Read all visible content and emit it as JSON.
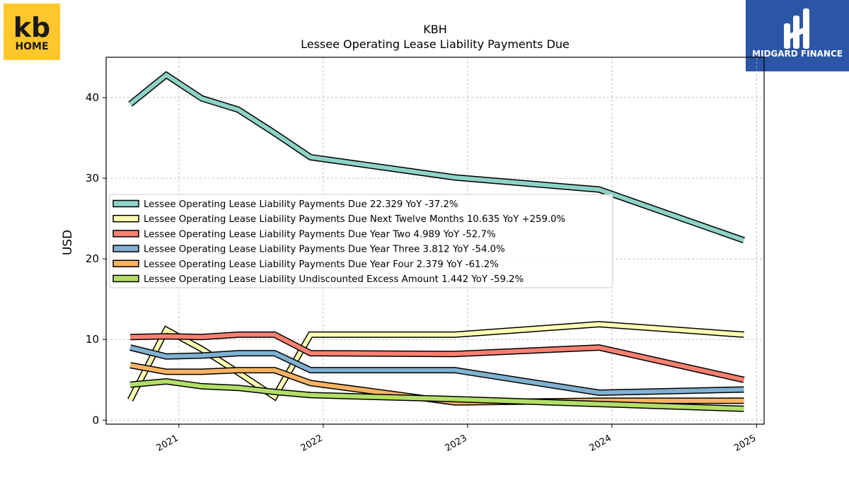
{
  "header": {
    "ticker": "KBH",
    "title": "Lessee Operating Lease Liability Payments Due"
  },
  "logos": {
    "left": {
      "line1": "kb",
      "line2": "HOME",
      "bg": "#FFC72C",
      "fg": "#1A1A1A"
    },
    "right": {
      "name": "MIDGARD FINANCE",
      "bg": "#2B56A6",
      "fg": "#FFFFFF"
    }
  },
  "chart_data": {
    "type": "line",
    "ylabel": "USD",
    "ylim": [
      -0.5,
      45
    ],
    "xlim": [
      "2020-07-01",
      "2025-01-20"
    ],
    "x_ticks": [
      "2021",
      "2022",
      "2023",
      "2024",
      "2025"
    ],
    "y_ticks": [
      0,
      10,
      20,
      30,
      40
    ],
    "grid": true,
    "legend_position": "center-left",
    "series": [
      {
        "name": "Lessee Operating Lease Liability Payments Due",
        "legend": "Lessee Operating Lease Liability Payments Due  22.329 YoY -37.2%",
        "color": "#8DD3C7",
        "points": [
          [
            "2020-08-31",
            39.2
          ],
          [
            "2020-11-30",
            42.8
          ],
          [
            "2021-02-28",
            39.9
          ],
          [
            "2021-05-31",
            38.5
          ],
          [
            "2021-08-31",
            35.6
          ],
          [
            "2021-11-30",
            32.6
          ],
          [
            "2022-11-30",
            30.1
          ],
          [
            "2023-11-30",
            28.6
          ],
          [
            "2024-11-30",
            22.3
          ]
        ]
      },
      {
        "name": "Lessee Operating Lease Liability Payments Due Next Twelve Months",
        "legend": "Lessee Operating Lease Liability Payments Due Next Twelve Months  10.635 YoY +259.0%",
        "color": "#FFFFB3",
        "points": [
          [
            "2020-08-31",
            2.5
          ],
          [
            "2020-11-30",
            11.2
          ],
          [
            "2021-02-28",
            8.8
          ],
          [
            "2021-05-31",
            5.9
          ],
          [
            "2021-08-31",
            2.9
          ],
          [
            "2021-11-30",
            10.6
          ],
          [
            "2022-11-30",
            10.6
          ],
          [
            "2023-11-30",
            11.9
          ],
          [
            "2024-11-30",
            10.6
          ]
        ]
      },
      {
        "name": "Lessee Operating Lease Liability Payments Due Year Two",
        "legend": "Lessee Operating Lease Liability Payments Due Year Two  4.989 YoY -52.7%",
        "color": "#FB8072",
        "points": [
          [
            "2020-08-31",
            10.3
          ],
          [
            "2020-11-30",
            10.4
          ],
          [
            "2021-02-28",
            10.3
          ],
          [
            "2021-05-31",
            10.6
          ],
          [
            "2021-08-31",
            10.6
          ],
          [
            "2021-11-30",
            8.3
          ],
          [
            "2022-11-30",
            8.2
          ],
          [
            "2023-11-30",
            9.0
          ],
          [
            "2024-11-30",
            5.0
          ]
        ]
      },
      {
        "name": "Lessee Operating Lease Liability Payments Due Year Three",
        "legend": "Lessee Operating Lease Liability Payments Due Year Three  3.812 YoY -54.0%",
        "color": "#80B1D3",
        "points": [
          [
            "2020-08-31",
            9.0
          ],
          [
            "2020-11-30",
            7.9
          ],
          [
            "2021-02-28",
            8.0
          ],
          [
            "2021-05-31",
            8.3
          ],
          [
            "2021-08-31",
            8.3
          ],
          [
            "2021-11-30",
            6.2
          ],
          [
            "2022-11-30",
            6.2
          ],
          [
            "2023-11-30",
            3.4
          ],
          [
            "2024-11-30",
            3.8
          ]
        ]
      },
      {
        "name": "Lessee Operating Lease Liability Payments Due Year Four",
        "legend": "Lessee Operating Lease Liability Payments Due Year Four  2.379 YoY -61.2%",
        "color": "#FDB462",
        "points": [
          [
            "2020-08-31",
            6.8
          ],
          [
            "2020-11-30",
            6.0
          ],
          [
            "2021-02-28",
            6.0
          ],
          [
            "2021-05-31",
            6.2
          ],
          [
            "2021-08-31",
            6.2
          ],
          [
            "2021-11-30",
            4.6
          ],
          [
            "2022-11-30",
            2.2
          ],
          [
            "2023-11-30",
            2.4
          ],
          [
            "2024-11-30",
            2.4
          ]
        ]
      },
      {
        "name": "Lessee Operating Lease Liability Undiscounted Excess Amount",
        "legend": "Lessee Operating Lease Liability Undiscounted Excess Amount  1.442 YoY -59.2%",
        "color": "#B3DE69",
        "points": [
          [
            "2020-08-31",
            4.4
          ],
          [
            "2020-11-30",
            4.8
          ],
          [
            "2021-02-28",
            4.2
          ],
          [
            "2021-05-31",
            4.0
          ],
          [
            "2021-08-31",
            3.5
          ],
          [
            "2021-11-30",
            3.1
          ],
          [
            "2022-11-30",
            2.6
          ],
          [
            "2023-11-30",
            2.0
          ],
          [
            "2024-11-30",
            1.4
          ]
        ]
      }
    ]
  }
}
